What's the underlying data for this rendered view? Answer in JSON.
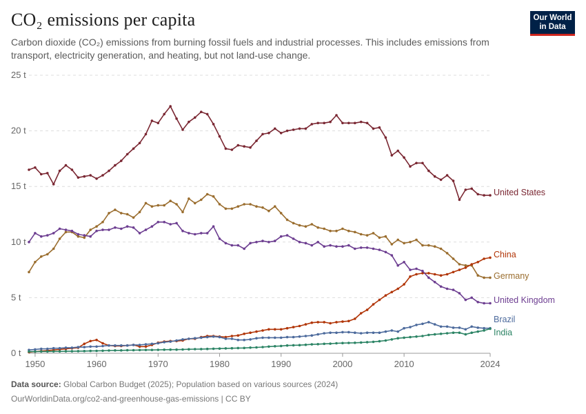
{
  "header": {
    "title": "CO₂ emissions per capita",
    "subtitle": "Carbon dioxide (CO₂) emissions from burning fossil fuels and industrial processes. This includes emissions from transport, electricity generation, and heating, but not land-use change."
  },
  "logo": {
    "line1": "Our World",
    "line2": "in Data",
    "bg_color": "#002147",
    "accent_color": "#ce261e"
  },
  "footer": {
    "source_label": "Data source:",
    "source_text": "Global Carbon Budget (2025); Population based on various sources (2024)",
    "link_text": "OurWorldinData.org/co2-and-greenhouse-gas-emissions | CC BY"
  },
  "chart_data": {
    "type": "line",
    "title": "CO₂ emissions per capita",
    "x_range": [
      1949,
      2024
    ],
    "ylim": [
      0,
      25
    ],
    "y_ticks": [
      0,
      5,
      10,
      15,
      20,
      25
    ],
    "y_tick_labels": [
      "0 t",
      "5 t",
      "10 t",
      "15 t",
      "20 t",
      "25 t"
    ],
    "x_ticks": [
      1950,
      1960,
      1970,
      1980,
      1990,
      2000,
      2010,
      2024
    ],
    "grid": "horizontal dashed",
    "legend": "end-of-line labels",
    "series": [
      {
        "name": "United States",
        "color": "#7a2732",
        "x": [
          1949,
          1950,
          1951,
          1952,
          1953,
          1954,
          1955,
          1956,
          1957,
          1958,
          1959,
          1960,
          1961,
          1962,
          1963,
          1964,
          1965,
          1966,
          1967,
          1968,
          1969,
          1970,
          1971,
          1972,
          1973,
          1974,
          1975,
          1976,
          1977,
          1978,
          1979,
          1980,
          1981,
          1982,
          1983,
          1984,
          1985,
          1986,
          1987,
          1988,
          1989,
          1990,
          1991,
          1992,
          1993,
          1994,
          1995,
          1996,
          1997,
          1998,
          1999,
          2000,
          2001,
          2002,
          2003,
          2004,
          2005,
          2006,
          2007,
          2008,
          2009,
          2010,
          2011,
          2012,
          2013,
          2014,
          2015,
          2016,
          2017,
          2018,
          2019,
          2020,
          2021,
          2022,
          2023,
          2024
        ],
        "y": [
          16.5,
          16.7,
          16.1,
          16.2,
          15.2,
          16.4,
          16.9,
          16.5,
          15.8,
          15.9,
          16.0,
          15.7,
          16.0,
          16.4,
          16.9,
          17.3,
          17.9,
          18.4,
          18.9,
          19.7,
          20.9,
          20.7,
          21.5,
          22.2,
          21.1,
          20.1,
          20.8,
          21.2,
          21.7,
          21.5,
          20.6,
          19.5,
          18.4,
          18.3,
          18.7,
          18.6,
          18.5,
          19.1,
          19.7,
          19.8,
          20.2,
          19.8,
          20.0,
          20.1,
          20.2,
          20.2,
          20.6,
          20.7,
          20.7,
          20.8,
          21.4,
          20.7,
          20.7,
          20.7,
          20.8,
          20.7,
          20.2,
          20.3,
          19.4,
          17.8,
          18.2,
          17.6,
          16.8,
          17.1,
          17.1,
          16.4,
          15.9,
          15.6,
          16.0,
          15.5,
          13.8,
          14.7,
          14.8,
          14.3,
          14.2,
          14.2
        ]
      },
      {
        "name": "Germany",
        "color": "#9a6d2e",
        "x": [
          1949,
          1950,
          1951,
          1952,
          1953,
          1954,
          1955,
          1956,
          1957,
          1958,
          1959,
          1960,
          1961,
          1962,
          1963,
          1964,
          1965,
          1966,
          1967,
          1968,
          1969,
          1970,
          1971,
          1972,
          1973,
          1974,
          1975,
          1976,
          1977,
          1978,
          1979,
          1980,
          1981,
          1982,
          1983,
          1984,
          1985,
          1986,
          1987,
          1988,
          1989,
          1990,
          1991,
          1992,
          1993,
          1994,
          1995,
          1996,
          1997,
          1998,
          1999,
          2000,
          2001,
          2002,
          2003,
          2004,
          2005,
          2006,
          2007,
          2008,
          2009,
          2010,
          2011,
          2012,
          2013,
          2014,
          2015,
          2016,
          2017,
          2018,
          2019,
          2020,
          2021,
          2022,
          2023,
          2024
        ],
        "y": [
          7.3,
          8.2,
          8.7,
          8.9,
          9.4,
          10.3,
          10.9,
          10.9,
          10.5,
          10.4,
          11.1,
          11.4,
          11.8,
          12.6,
          12.9,
          12.6,
          12.5,
          12.2,
          12.7,
          13.5,
          13.2,
          13.3,
          13.3,
          13.7,
          13.4,
          12.7,
          13.9,
          13.5,
          13.8,
          14.3,
          14.1,
          13.4,
          13.0,
          13.0,
          13.2,
          13.4,
          13.4,
          13.2,
          13.1,
          12.8,
          13.2,
          12.6,
          12.0,
          11.7,
          11.5,
          11.4,
          11.6,
          11.3,
          11.2,
          11.0,
          11.0,
          11.2,
          11.0,
          10.9,
          10.7,
          10.6,
          10.8,
          10.4,
          10.5,
          9.8,
          10.2,
          9.9,
          10.0,
          10.2,
          9.7,
          9.7,
          9.6,
          9.4,
          9.0,
          8.5,
          8.0,
          7.9,
          7.9,
          7.0,
          6.8,
          6.8
        ]
      },
      {
        "name": "China",
        "color": "#b13507",
        "x": [
          1949,
          1950,
          1951,
          1952,
          1953,
          1954,
          1955,
          1956,
          1957,
          1958,
          1959,
          1960,
          1961,
          1962,
          1963,
          1964,
          1965,
          1966,
          1967,
          1968,
          1969,
          1970,
          1971,
          1972,
          1973,
          1974,
          1975,
          1976,
          1977,
          1978,
          1979,
          1980,
          1981,
          1982,
          1983,
          1984,
          1985,
          1986,
          1987,
          1988,
          1989,
          1990,
          1991,
          1992,
          1993,
          1994,
          1995,
          1996,
          1997,
          1998,
          1999,
          2000,
          2001,
          2002,
          2003,
          2004,
          2005,
          2006,
          2007,
          2008,
          2009,
          2010,
          2011,
          2012,
          2013,
          2014,
          2015,
          2016,
          2017,
          2018,
          2019,
          2020,
          2021,
          2022,
          2023,
          2024
        ],
        "y": [
          0.1,
          0.15,
          0.2,
          0.25,
          0.3,
          0.35,
          0.4,
          0.45,
          0.5,
          0.85,
          1.1,
          1.2,
          0.9,
          0.7,
          0.65,
          0.65,
          0.7,
          0.75,
          0.6,
          0.6,
          0.75,
          0.95,
          1.05,
          1.1,
          1.1,
          1.15,
          1.3,
          1.3,
          1.45,
          1.55,
          1.55,
          1.5,
          1.45,
          1.55,
          1.6,
          1.75,
          1.85,
          1.95,
          2.05,
          2.15,
          2.15,
          2.15,
          2.25,
          2.35,
          2.45,
          2.6,
          2.75,
          2.8,
          2.8,
          2.7,
          2.8,
          2.85,
          2.9,
          3.1,
          3.6,
          3.9,
          4.4,
          4.8,
          5.2,
          5.5,
          5.8,
          6.2,
          6.9,
          7.1,
          7.2,
          7.2,
          7.1,
          7.0,
          7.1,
          7.3,
          7.5,
          7.7,
          8.0,
          8.2,
          8.5,
          8.6
        ]
      },
      {
        "name": "United Kingdom",
        "color": "#6d3e91",
        "x": [
          1949,
          1950,
          1951,
          1952,
          1953,
          1954,
          1955,
          1956,
          1957,
          1958,
          1959,
          1960,
          1961,
          1962,
          1963,
          1964,
          1965,
          1966,
          1967,
          1968,
          1969,
          1970,
          1971,
          1972,
          1973,
          1974,
          1975,
          1976,
          1977,
          1978,
          1979,
          1980,
          1981,
          1982,
          1983,
          1984,
          1985,
          1986,
          1987,
          1988,
          1989,
          1990,
          1991,
          1992,
          1993,
          1994,
          1995,
          1996,
          1997,
          1998,
          1999,
          2000,
          2001,
          2002,
          2003,
          2004,
          2005,
          2006,
          2007,
          2008,
          2009,
          2010,
          2011,
          2012,
          2013,
          2014,
          2015,
          2016,
          2017,
          2018,
          2019,
          2020,
          2021,
          2022,
          2023,
          2024
        ],
        "y": [
          10.0,
          10.8,
          10.5,
          10.6,
          10.8,
          11.2,
          11.1,
          11.0,
          10.7,
          10.6,
          10.5,
          11.0,
          11.1,
          11.1,
          11.3,
          11.2,
          11.4,
          11.3,
          10.8,
          11.1,
          11.4,
          11.8,
          11.8,
          11.6,
          11.7,
          11.0,
          10.8,
          10.7,
          10.8,
          10.8,
          11.4,
          10.3,
          9.9,
          9.7,
          9.7,
          9.4,
          9.9,
          10.0,
          10.1,
          10.0,
          10.1,
          10.5,
          10.6,
          10.3,
          10.0,
          9.9,
          9.7,
          10.0,
          9.6,
          9.7,
          9.6,
          9.6,
          9.7,
          9.4,
          9.5,
          9.5,
          9.4,
          9.3,
          9.1,
          8.8,
          7.9,
          8.2,
          7.5,
          7.6,
          7.4,
          6.8,
          6.4,
          6.0,
          5.8,
          5.7,
          5.4,
          4.8,
          5.0,
          4.6,
          4.5,
          4.5
        ]
      },
      {
        "name": "Brazil",
        "color": "#4c6a9c",
        "x": [
          1949,
          1950,
          1951,
          1952,
          1953,
          1954,
          1955,
          1956,
          1957,
          1958,
          1959,
          1960,
          1961,
          1962,
          1963,
          1964,
          1965,
          1966,
          1967,
          1968,
          1969,
          1970,
          1971,
          1972,
          1973,
          1974,
          1975,
          1976,
          1977,
          1978,
          1979,
          1980,
          1981,
          1982,
          1983,
          1984,
          1985,
          1986,
          1987,
          1988,
          1989,
          1990,
          1991,
          1992,
          1993,
          1994,
          1995,
          1996,
          1997,
          1998,
          1999,
          2000,
          2001,
          2002,
          2003,
          2004,
          2005,
          2006,
          2007,
          2008,
          2009,
          2010,
          2011,
          2012,
          2013,
          2014,
          2015,
          2016,
          2017,
          2018,
          2019,
          2020,
          2021,
          2022,
          2023,
          2024
        ],
        "y": [
          0.3,
          0.35,
          0.4,
          0.4,
          0.45,
          0.45,
          0.5,
          0.5,
          0.55,
          0.55,
          0.6,
          0.6,
          0.65,
          0.7,
          0.7,
          0.7,
          0.7,
          0.75,
          0.75,
          0.8,
          0.85,
          0.9,
          1.0,
          1.05,
          1.15,
          1.25,
          1.3,
          1.35,
          1.4,
          1.45,
          1.5,
          1.45,
          1.3,
          1.3,
          1.2,
          1.2,
          1.25,
          1.35,
          1.4,
          1.4,
          1.4,
          1.4,
          1.45,
          1.45,
          1.5,
          1.55,
          1.6,
          1.7,
          1.8,
          1.85,
          1.85,
          1.9,
          1.9,
          1.85,
          1.8,
          1.85,
          1.85,
          1.85,
          1.95,
          2.05,
          1.95,
          2.25,
          2.35,
          2.55,
          2.65,
          2.8,
          2.6,
          2.4,
          2.4,
          2.3,
          2.3,
          2.15,
          2.4,
          2.3,
          2.25,
          2.25
        ]
      },
      {
        "name": "India",
        "color": "#2c8465",
        "x": [
          1949,
          1950,
          1951,
          1952,
          1953,
          1954,
          1955,
          1956,
          1957,
          1958,
          1959,
          1960,
          1961,
          1962,
          1963,
          1964,
          1965,
          1966,
          1967,
          1968,
          1969,
          1970,
          1971,
          1972,
          1973,
          1974,
          1975,
          1976,
          1977,
          1978,
          1979,
          1980,
          1981,
          1982,
          1983,
          1984,
          1985,
          1986,
          1987,
          1988,
          1989,
          1990,
          1991,
          1992,
          1993,
          1994,
          1995,
          1996,
          1997,
          1998,
          1999,
          2000,
          2001,
          2002,
          2003,
          2004,
          2005,
          2006,
          2007,
          2008,
          2009,
          2010,
          2011,
          2012,
          2013,
          2014,
          2015,
          2016,
          2017,
          2018,
          2019,
          2020,
          2021,
          2022,
          2023,
          2024
        ],
        "y": [
          0.15,
          0.15,
          0.16,
          0.16,
          0.17,
          0.17,
          0.18,
          0.18,
          0.19,
          0.2,
          0.21,
          0.22,
          0.23,
          0.25,
          0.26,
          0.26,
          0.27,
          0.28,
          0.29,
          0.3,
          0.3,
          0.31,
          0.32,
          0.33,
          0.33,
          0.34,
          0.36,
          0.37,
          0.38,
          0.39,
          0.41,
          0.42,
          0.44,
          0.45,
          0.47,
          0.48,
          0.51,
          0.53,
          0.56,
          0.6,
          0.63,
          0.66,
          0.7,
          0.72,
          0.73,
          0.76,
          0.8,
          0.82,
          0.85,
          0.86,
          0.9,
          0.92,
          0.93,
          0.94,
          0.97,
          1.0,
          1.03,
          1.08,
          1.15,
          1.25,
          1.35,
          1.4,
          1.45,
          1.5,
          1.55,
          1.65,
          1.7,
          1.75,
          1.8,
          1.85,
          1.85,
          1.7,
          1.85,
          1.95,
          2.05,
          2.2
        ]
      }
    ]
  }
}
